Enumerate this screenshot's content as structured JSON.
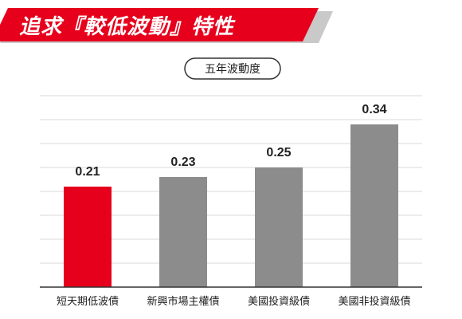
{
  "header": {
    "title": "追求『較低波動』特性",
    "banner_color": "#e6001c",
    "shadow_color": "#c9c9c9"
  },
  "chart_data": {
    "type": "bar",
    "title": "五年波動度",
    "categories": [
      "短天期低波債",
      "新興市場主權債",
      "美國投資級債",
      "美國非投資級債"
    ],
    "values": [
      0.21,
      0.23,
      0.25,
      0.34
    ],
    "value_labels": [
      "0.21",
      "0.23",
      "0.25",
      "0.34"
    ],
    "colors": [
      "#e6001c",
      "#8c8c8c",
      "#8c8c8c",
      "#8c8c8c"
    ],
    "xlabel": "",
    "ylabel": "",
    "ylim": [
      0,
      0.4
    ],
    "grid": true,
    "legend": "none"
  }
}
